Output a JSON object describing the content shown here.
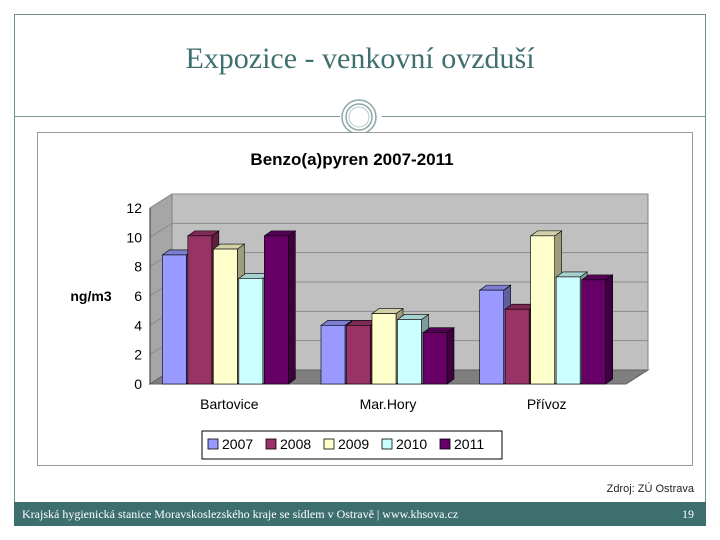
{
  "slide": {
    "title": "Expozice - venkovní ovzduší",
    "source": "Zdroj: ZÚ Ostrava",
    "footer_text": "Krajská hygienická stanice Moravskoslezského kraje se sídlem v Ostravě | www.khsova.cz",
    "page_number": "19"
  },
  "chart_data": {
    "type": "bar",
    "title": "Benzo(a)pyren 2007-2011",
    "xlabel": "",
    "ylabel": "ng/m3",
    "ylim": [
      0,
      12
    ],
    "yticks": [
      0,
      2,
      4,
      6,
      8,
      10,
      12
    ],
    "categories": [
      "Bartovice",
      "Mar.Hory",
      "Přívoz"
    ],
    "series": [
      {
        "name": "2007",
        "values": [
          8.8,
          4.0,
          6.4
        ],
        "color": "#9999ff"
      },
      {
        "name": "2008",
        "values": [
          10.1,
          4.0,
          5.1
        ],
        "color": "#993366"
      },
      {
        "name": "2009",
        "values": [
          9.2,
          4.8,
          10.1
        ],
        "color": "#ffffcc"
      },
      {
        "name": "2010",
        "values": [
          7.2,
          4.4,
          7.3
        ],
        "color": "#ccffff"
      },
      {
        "name": "2011",
        "values": [
          10.1,
          3.5,
          7.1
        ],
        "color": "#660066"
      }
    ],
    "grid": true,
    "legend": "bottom"
  }
}
